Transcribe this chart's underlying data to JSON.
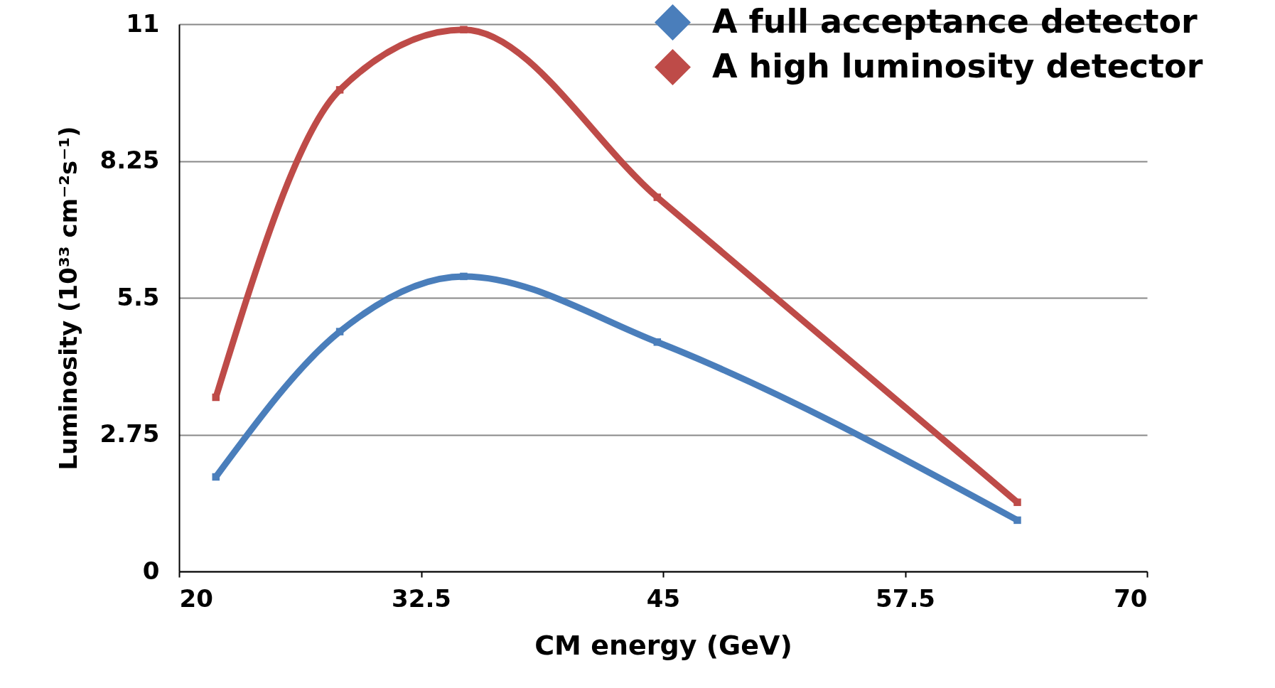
{
  "chart_data": {
    "type": "line",
    "xlabel": "CM energy (GeV)",
    "ylabel": "Luminosity (10³³ cm⁻²s⁻¹)",
    "x": [
      21.9,
      28.3,
      34.7,
      44.7,
      63.3
    ],
    "series": [
      {
        "name": "A full acceptance detector",
        "color": "#4a7ebb",
        "values": [
          1.9,
          4.82,
          5.93,
          4.61,
          1.03
        ]
      },
      {
        "name": "A high luminosity detector",
        "color": "#be4b48",
        "values": [
          3.5,
          9.68,
          10.89,
          7.52,
          1.39
        ]
      }
    ],
    "xlim": [
      20,
      70
    ],
    "xticks": [
      20,
      32.5,
      45,
      57.5,
      70
    ],
    "ylim": [
      0,
      11
    ],
    "yticks": [
      0,
      2.75,
      5.5,
      8.25,
      11
    ],
    "grid": "y",
    "legend": "top right",
    "marker": "square"
  }
}
